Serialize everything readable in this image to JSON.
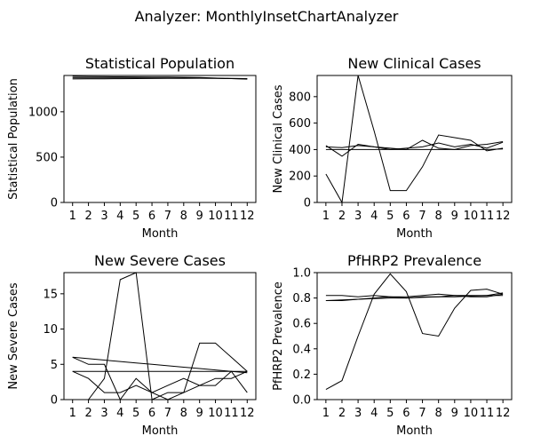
{
  "suptitle": "Analyzer: MonthlyInsetChartAnalyzer",
  "chart_data": [
    {
      "type": "line",
      "title": "Statistical Population",
      "xlabel": "Month",
      "ylabel": "Statistical Population",
      "x": [
        1,
        2,
        3,
        4,
        5,
        6,
        7,
        8,
        9,
        10,
        11,
        12
      ],
      "xticks": [
        "1",
        "2",
        "3",
        "4",
        "5",
        "6",
        "7",
        "8",
        "9",
        "10",
        "11",
        "12"
      ],
      "ylim": [
        0,
        1400
      ],
      "yticks": [
        0,
        500,
        1000
      ],
      "series": [
        {
          "values": [
            1390,
            1388,
            1386,
            1385,
            1384,
            1383,
            1382,
            1380,
            1378,
            1372,
            1366,
            1360
          ]
        },
        {
          "values": [
            1375,
            1374,
            1374,
            1373,
            1373,
            1372,
            1372,
            1371,
            1371,
            1370,
            1368,
            1366
          ]
        },
        {
          "values": [
            1362,
            1363,
            1364,
            1365,
            1366,
            1367,
            1368,
            1369,
            1370,
            1368,
            1366,
            1363
          ]
        }
      ]
    },
    {
      "type": "line",
      "title": "New Clinical Cases",
      "xlabel": "Month",
      "ylabel": "New Clinical Cases",
      "x": [
        1,
        2,
        3,
        4,
        5,
        6,
        7,
        8,
        9,
        10,
        11,
        12
      ],
      "xticks": [
        "1",
        "2",
        "3",
        "4",
        "5",
        "6",
        "7",
        "8",
        "9",
        "10",
        "11",
        "12"
      ],
      "ylim": [
        0,
        960
      ],
      "yticks": [
        0,
        200,
        400,
        600,
        800
      ],
      "series": [
        {
          "values": [
            215,
            0,
            960,
            540,
            90,
            90,
            270,
            510,
            490,
            470,
            390,
            410
          ]
        },
        {
          "values": [
            430,
            350,
            440,
            420,
            410,
            400,
            470,
            410,
            400,
            430,
            440,
            460
          ]
        },
        {
          "values": [
            420,
            415,
            430,
            420,
            400,
            410,
            420,
            450,
            420,
            440,
            410,
            455
          ]
        },
        {
          "values": [
            400,
            400,
            400,
            400,
            400,
            400,
            400,
            400,
            400,
            400,
            400,
            405
          ]
        }
      ]
    },
    {
      "type": "line",
      "title": "New Severe Cases",
      "xlabel": "Month",
      "ylabel": "New Severe Cases",
      "x": [
        1,
        2,
        3,
        4,
        5,
        6,
        7,
        8,
        9,
        10,
        11,
        12
      ],
      "xticks": [
        "1",
        "2",
        "3",
        "4",
        "5",
        "6",
        "7",
        "8",
        "9",
        "10",
        "11",
        "12"
      ],
      "ylim": [
        0,
        18
      ],
      "yticks": [
        0,
        5,
        10,
        15
      ],
      "series": [
        {
          "values": [
            0,
            0,
            3,
            17,
            18,
            0,
            1,
            1,
            8,
            8,
            6,
            4
          ]
        },
        {
          "values": [
            4,
            3,
            1,
            1,
            2,
            1,
            2,
            3,
            2,
            2,
            4,
            1
          ]
        },
        {
          "values": [
            6,
            5,
            5,
            0,
            3,
            1,
            0,
            1,
            2,
            3,
            3,
            4
          ]
        },
        {
          "values": [
            4,
            4,
            4,
            4,
            4,
            4,
            4,
            4,
            4,
            4,
            4,
            4
          ]
        },
        {
          "values": [
            6,
            5.8,
            5.6,
            5.4,
            5.2,
            5,
            4.8,
            4.6,
            4.4,
            4.2,
            4,
            3.8
          ]
        }
      ]
    },
    {
      "type": "line",
      "title": "PfHRP2 Prevalence",
      "xlabel": "Month",
      "ylabel": "PfHRP2 Prevalence",
      "x": [
        1,
        2,
        3,
        4,
        5,
        6,
        7,
        8,
        9,
        10,
        11,
        12
      ],
      "xticks": [
        "1",
        "2",
        "3",
        "4",
        "5",
        "6",
        "7",
        "8",
        "9",
        "10",
        "11",
        "12"
      ],
      "ylim": [
        0,
        1.0
      ],
      "yticks": [
        0.0,
        0.2,
        0.4,
        0.6,
        0.8,
        1.0
      ],
      "yticklabels": [
        "0.0",
        "0.2",
        "0.4",
        "0.6",
        "0.8",
        "1.0"
      ],
      "series": [
        {
          "values": [
            0.08,
            0.15,
            0.5,
            0.83,
            0.99,
            0.85,
            0.52,
            0.5,
            0.72,
            0.86,
            0.87,
            0.83
          ]
        },
        {
          "values": [
            0.82,
            0.82,
            0.81,
            0.82,
            0.81,
            0.81,
            0.82,
            0.83,
            0.82,
            0.81,
            0.81,
            0.83
          ]
        },
        {
          "values": [
            0.78,
            0.78,
            0.79,
            0.8,
            0.81,
            0.8,
            0.81,
            0.81,
            0.82,
            0.82,
            0.82,
            0.84
          ]
        },
        {
          "values": [
            0.78,
            0.785,
            0.79,
            0.795,
            0.8,
            0.8,
            0.805,
            0.81,
            0.81,
            0.815,
            0.82,
            0.82
          ]
        }
      ]
    }
  ]
}
